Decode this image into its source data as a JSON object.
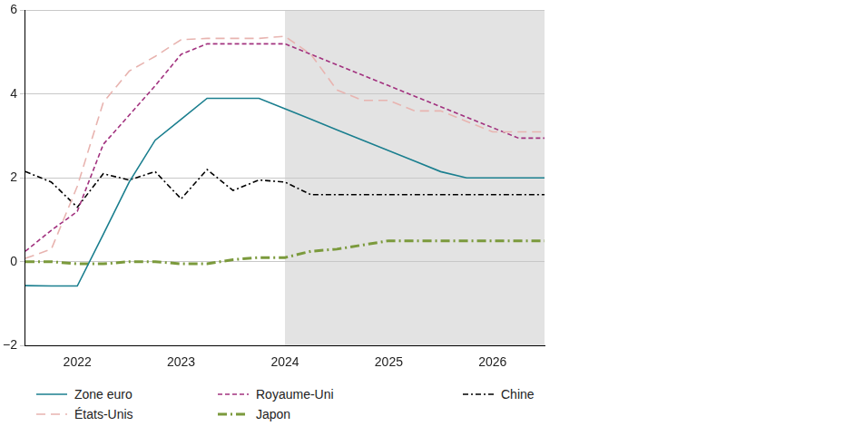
{
  "chart_data": {
    "type": "line",
    "x": [
      2022,
      2022.25,
      2022.5,
      2022.75,
      2023,
      2023.25,
      2023.5,
      2023.75,
      2024,
      2024.25,
      2024.5,
      2024.75,
      2025,
      2025.25,
      2025.5,
      2025.75,
      2026,
      2026.25,
      2026.5,
      2026.75,
      2027
    ],
    "series": [
      {
        "name": "Zone euro",
        "color": "#1b7f8f",
        "line_style": "solid",
        "values": [
          -0.57,
          -0.58,
          -0.58,
          0.65,
          1.9,
          2.9,
          3.4,
          3.9,
          3.9,
          3.9,
          3.65,
          3.4,
          3.15,
          2.9,
          2.65,
          2.4,
          2.15,
          2.0,
          2.0,
          2.0,
          2.0
        ]
      },
      {
        "name": "États-Unis",
        "color": "#e8b4b0",
        "line_style": "long_dashed",
        "values": [
          0.08,
          0.3,
          1.8,
          3.8,
          4.55,
          4.9,
          5.3,
          5.33,
          5.33,
          5.33,
          5.38,
          4.95,
          4.1,
          3.85,
          3.85,
          3.6,
          3.6,
          3.35,
          3.1,
          3.1,
          3.1
        ]
      },
      {
        "name": "Royaume-Uni",
        "color": "#a2327f",
        "line_style": "dashed",
        "values": [
          0.25,
          0.75,
          1.2,
          2.8,
          3.5,
          4.2,
          4.95,
          5.2,
          5.2,
          5.2,
          5.2,
          4.95,
          4.7,
          4.45,
          4.2,
          3.95,
          3.7,
          3.45,
          3.2,
          2.95,
          2.95
        ]
      },
      {
        "name": "Japon",
        "color": "#7b9a3c",
        "line_style": "dash_dot",
        "values": [
          0,
          0,
          -0.05,
          -0.05,
          0,
          0,
          -0.05,
          -0.05,
          0.05,
          0.1,
          0.1,
          0.25,
          0.3,
          0.4,
          0.5,
          0.5,
          0.5,
          0.5,
          0.5,
          0.5,
          0.5
        ]
      },
      {
        "name": "Chine",
        "color": "#000000",
        "line_style": "dash_dot",
        "values": [
          2.15,
          1.9,
          1.3,
          2.1,
          1.95,
          2.15,
          1.5,
          2.2,
          1.7,
          1.95,
          1.9,
          1.6,
          1.6,
          1.6,
          1.6,
          1.6,
          1.6,
          1.6,
          1.6,
          1.6,
          1.6
        ]
      }
    ],
    "xlim": [
      2022,
      2027
    ],
    "xticks": [
      {
        "value": 2022.5,
        "label": "2022"
      },
      {
        "value": 2023.5,
        "label": "2023"
      },
      {
        "value": 2024.5,
        "label": "2024"
      },
      {
        "value": 2025.5,
        "label": "2025"
      },
      {
        "value": 2026.5,
        "label": "2026"
      }
    ],
    "ylim": [
      -2,
      6
    ],
    "yticks": [
      -2,
      0,
      2,
      4,
      6
    ],
    "projection_start": 2024.5,
    "grid": true,
    "legend": "bottom"
  }
}
